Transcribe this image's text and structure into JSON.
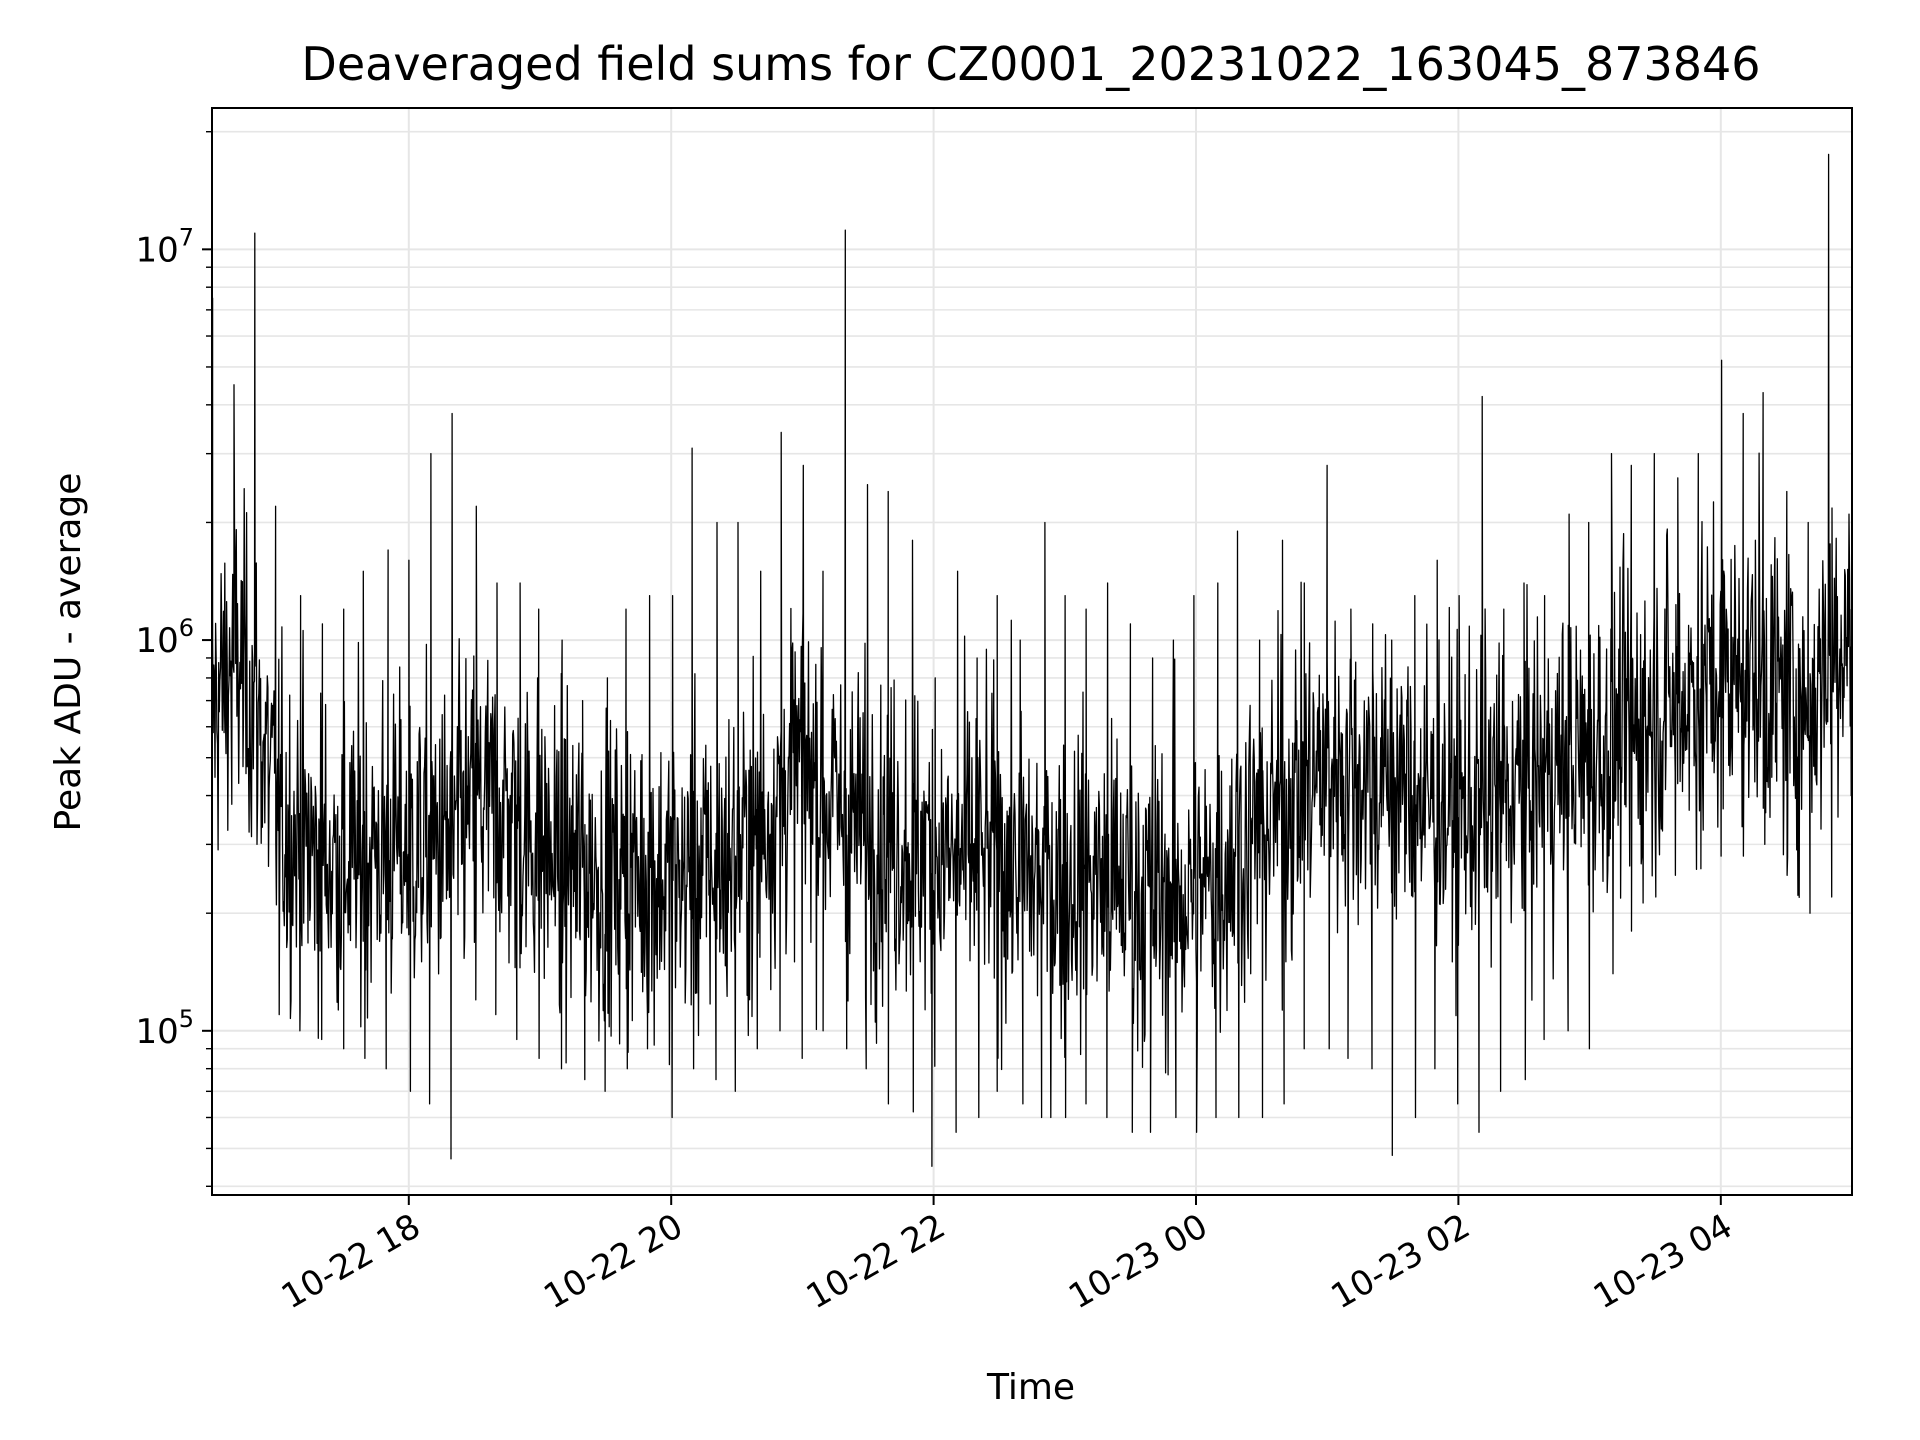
{
  "chart_data": {
    "type": "line",
    "title": "Deaveraged field sums for CZ0001_20231022_163045_873846",
    "xlabel": "Time",
    "ylabel": "Peak ADU - average",
    "y_scale": "log",
    "ylim": [
      38000,
      23000000
    ],
    "xlim": [
      "2023-10-22 16:30",
      "2023-10-23 05:00"
    ],
    "grid": true,
    "legend": "none",
    "x_tick_labels": [
      "10-22 18",
      "10-22 20",
      "10-22 22",
      "10-23 00",
      "10-23 02",
      "10-23 04"
    ],
    "x_ticks": [
      "2023-10-22 18:00",
      "2023-10-22 20:00",
      "2023-10-22 22:00",
      "2023-10-23 00:00",
      "2023-10-23 02:00",
      "2023-10-23 04:00"
    ],
    "y_ticks": [
      {
        "base": "10",
        "exp": "5",
        "value": 100000
      },
      {
        "base": "10",
        "exp": "6",
        "value": 1000000
      },
      {
        "base": "10",
        "exp": "7",
        "value": 10000000
      }
    ],
    "series": [
      {
        "color": "#000000",
        "x": [
          "2023-10-22 16:30",
          "2023-10-22 16:40",
          "2023-10-22 16:50",
          "2023-10-22 17:00",
          "2023-10-22 17:10",
          "2023-10-22 17:20",
          "2023-10-22 17:30",
          "2023-10-22 17:40",
          "2023-10-22 17:50",
          "2023-10-22 18:00",
          "2023-10-22 18:10",
          "2023-10-22 18:20",
          "2023-10-22 18:30",
          "2023-10-22 18:40",
          "2023-10-22 18:50",
          "2023-10-22 19:00",
          "2023-10-22 19:10",
          "2023-10-22 19:20",
          "2023-10-22 19:30",
          "2023-10-22 19:40",
          "2023-10-22 19:50",
          "2023-10-22 20:00",
          "2023-10-22 20:10",
          "2023-10-22 20:20",
          "2023-10-22 20:30",
          "2023-10-22 20:40",
          "2023-10-22 20:50",
          "2023-10-22 21:00",
          "2023-10-22 21:10",
          "2023-10-22 21:20",
          "2023-10-22 21:30",
          "2023-10-22 21:40",
          "2023-10-22 21:50",
          "2023-10-22 22:00",
          "2023-10-22 22:10",
          "2023-10-22 22:20",
          "2023-10-22 22:30",
          "2023-10-22 22:40",
          "2023-10-22 22:50",
          "2023-10-22 23:00",
          "2023-10-22 23:10",
          "2023-10-22 23:20",
          "2023-10-22 23:30",
          "2023-10-22 23:40",
          "2023-10-22 23:50",
          "2023-10-23 00:00",
          "2023-10-23 00:10",
          "2023-10-23 00:20",
          "2023-10-23 00:30",
          "2023-10-23 00:40",
          "2023-10-23 00:50",
          "2023-10-23 01:00",
          "2023-10-23 01:10",
          "2023-10-23 01:20",
          "2023-10-23 01:30",
          "2023-10-23 01:40",
          "2023-10-23 01:50",
          "2023-10-23 02:00",
          "2023-10-23 02:10",
          "2023-10-23 02:20",
          "2023-10-23 02:30",
          "2023-10-23 02:40",
          "2023-10-23 02:50",
          "2023-10-23 03:00",
          "2023-10-23 03:10",
          "2023-10-23 03:20",
          "2023-10-23 03:30",
          "2023-10-23 03:40",
          "2023-10-23 03:50",
          "2023-10-23 04:00",
          "2023-10-23 04:10",
          "2023-10-23 04:20",
          "2023-10-23 04:30",
          "2023-10-23 04:40",
          "2023-10-23 04:50",
          "2023-10-23 05:00"
        ],
        "low": [
          200000,
          380000,
          300000,
          110000,
          100000,
          95000,
          90000,
          85000,
          80000,
          70000,
          65000,
          47000,
          120000,
          110000,
          95000,
          85000,
          80000,
          75000,
          70000,
          80000,
          90000,
          60000,
          80000,
          75000,
          70000,
          90000,
          100000,
          85000,
          100000,
          90000,
          80000,
          65000,
          62000,
          45000,
          55000,
          60000,
          70000,
          65000,
          60000,
          60000,
          65000,
          60000,
          55000,
          55000,
          60000,
          55000,
          60000,
          60000,
          60000,
          65000,
          90000,
          90000,
          85000,
          80000,
          48000,
          60000,
          80000,
          65000,
          55000,
          70000,
          75000,
          95000,
          100000,
          90000,
          140000,
          180000,
          220000,
          250000,
          260000,
          280000,
          280000,
          300000,
          250000,
          200000,
          220000,
          400000
        ],
        "high": [
          7500000,
          4500000,
          11000000,
          2200000,
          1300000,
          1100000,
          1200000,
          1500000,
          1700000,
          1600000,
          3000000,
          3800000,
          2200000,
          1400000,
          1400000,
          1200000,
          1000000,
          700000,
          800000,
          1200000,
          1300000,
          1300000,
          3100000,
          2000000,
          2000000,
          1500000,
          3400000,
          2800000,
          1500000,
          11200000,
          2500000,
          2400000,
          1800000,
          800000,
          1500000,
          900000,
          1300000,
          1000000,
          2000000,
          1300000,
          1200000,
          1400000,
          1100000,
          900000,
          1000000,
          1300000,
          1400000,
          1900000,
          1000000,
          1800000,
          1400000,
          2800000,
          1200000,
          1100000,
          1000000,
          1300000,
          1600000,
          1300000,
          4200000,
          1200000,
          1400000,
          1300000,
          2100000,
          2000000,
          3000000,
          2800000,
          3000000,
          2600000,
          3000000,
          5200000,
          3800000,
          4300000,
          2400000,
          2000000,
          17500000,
          3200000
        ],
        "typical": [
          650000,
          900000,
          700000,
          350000,
          300000,
          280000,
          270000,
          280000,
          300000,
          290000,
          300000,
          310000,
          380000,
          380000,
          340000,
          300000,
          270000,
          260000,
          250000,
          250000,
          250000,
          240000,
          250000,
          260000,
          280000,
          320000,
          400000,
          500000,
          400000,
          350000,
          330000,
          320000,
          300000,
          280000,
          270000,
          280000,
          280000,
          260000,
          240000,
          240000,
          250000,
          240000,
          230000,
          220000,
          220000,
          220000,
          250000,
          300000,
          330000,
          380000,
          420000,
          480000,
          470000,
          450000,
          430000,
          400000,
          380000,
          370000,
          380000,
          400000,
          420000,
          450000,
          480000,
          500000,
          550000,
          600000,
          650000,
          700000,
          750000,
          800000,
          850000,
          800000,
          700000,
          650000,
          1000000,
          1100000
        ]
      }
    ]
  }
}
